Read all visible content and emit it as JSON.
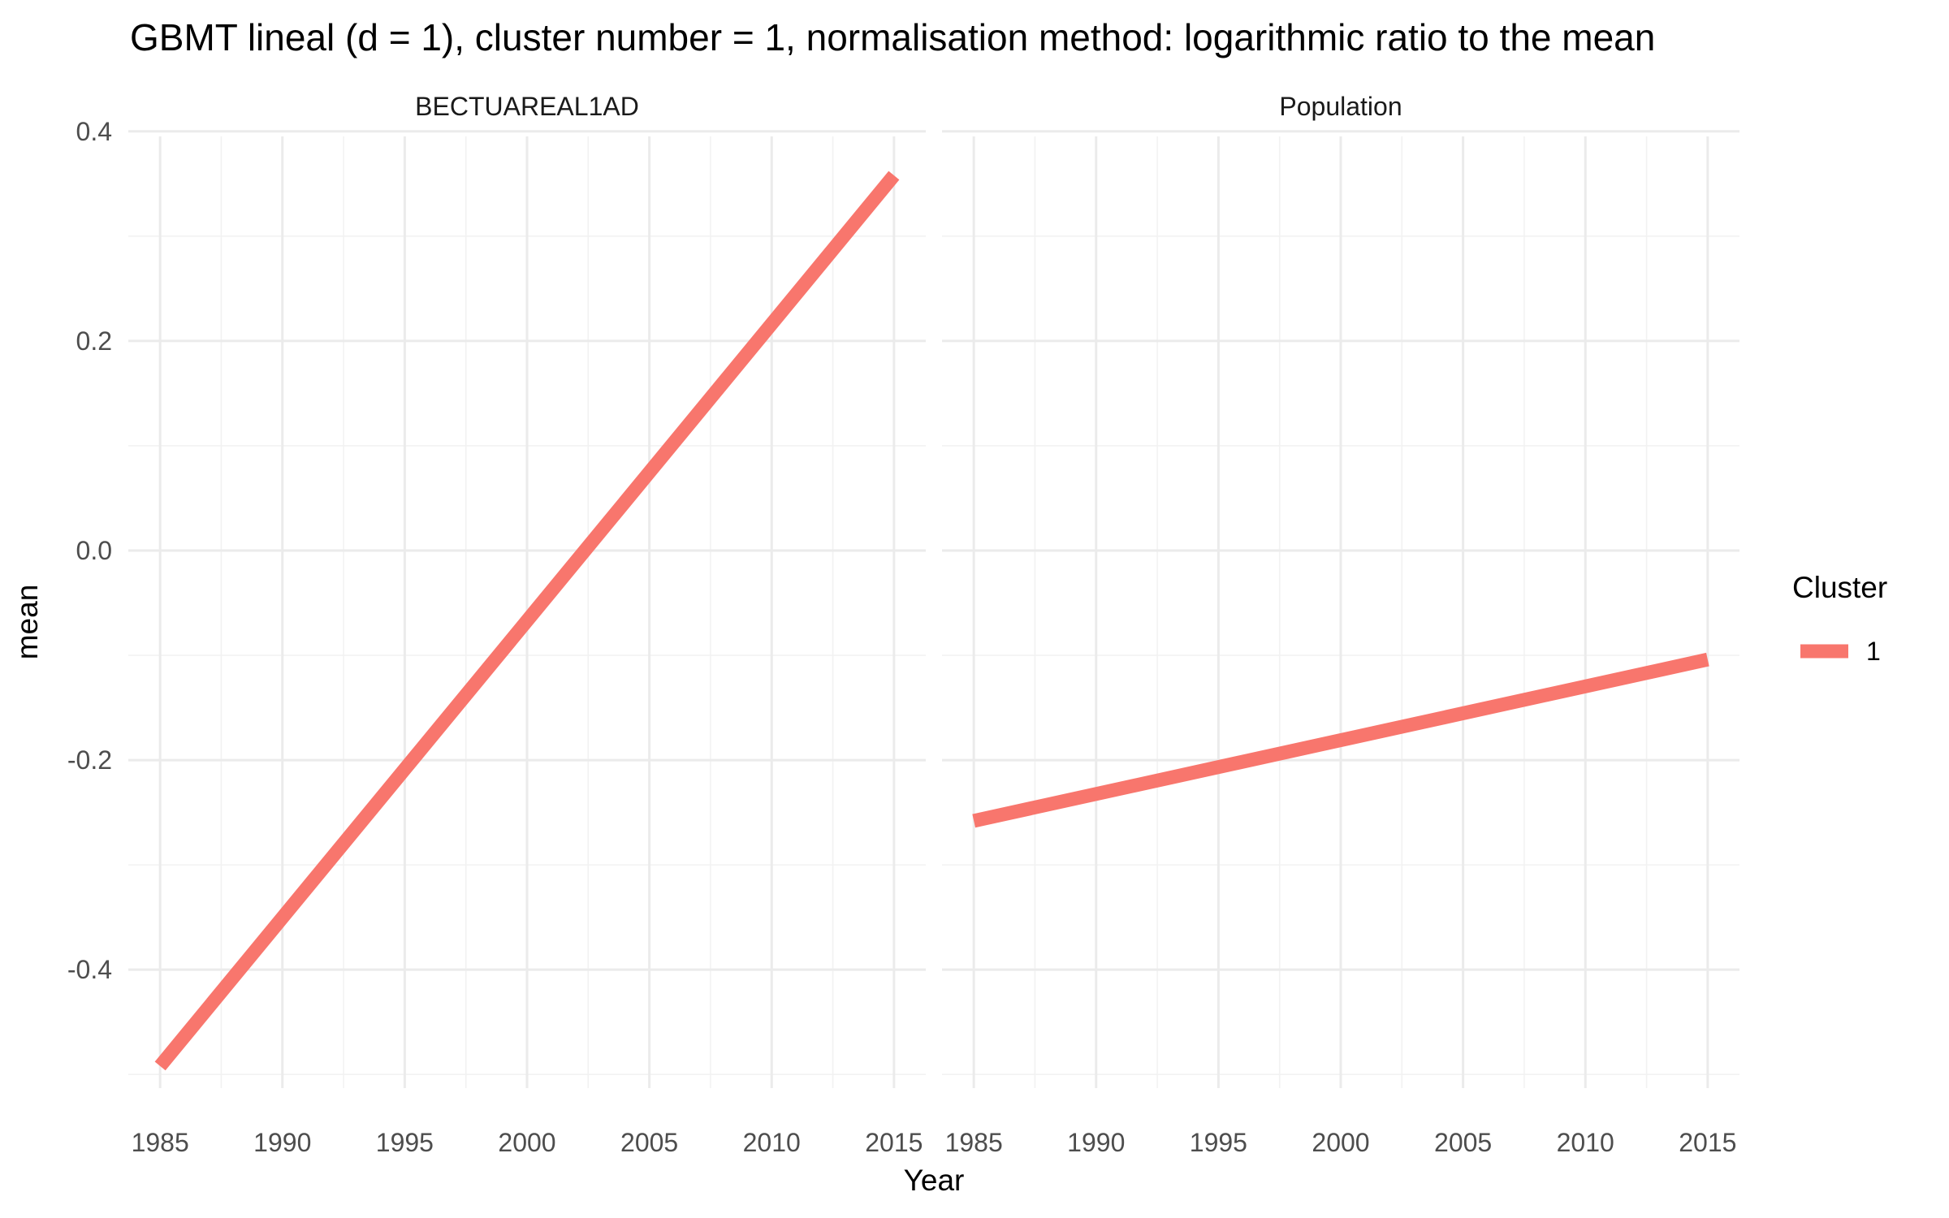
{
  "chart_data": {
    "type": "line",
    "title": "GBMT lineal (d = 1), cluster number = 1, normalisation method: logarithmic ratio to the mean",
    "xlabel": "Year",
    "ylabel": "mean",
    "xlim": [
      1983.7,
      2016.3
    ],
    "ylim": [
      -0.513,
      0.413
    ],
    "x_major_ticks": [
      1985,
      1990,
      1995,
      2000,
      2005,
      2010,
      2015
    ],
    "x_tick_labels": [
      "1985",
      "1990",
      "1995",
      "2000",
      "2005",
      "2010",
      "2015"
    ],
    "x_minor_ticks": [
      1987.5,
      1992.5,
      1997.5,
      2002.5,
      2007.5,
      2012.5
    ],
    "y_major_ticks": [
      -0.4,
      -0.2,
      0.0,
      0.2,
      0.4
    ],
    "y_tick_labels": [
      "-0.4",
      "-0.2",
      "0.0",
      "0.2",
      "0.4"
    ],
    "y_minor_ticks": [
      -0.5,
      -0.3,
      -0.1,
      0.1,
      0.3
    ],
    "grid": true,
    "legend": {
      "title": "Cluster",
      "placement": "right",
      "entries": [
        {
          "label": "1",
          "color": "#F8766D"
        }
      ]
    },
    "panels": [
      {
        "strip_label": "BECTUAREAL1AD",
        "series": [
          {
            "name": "1",
            "color": "#F8766D",
            "x": [
              1985,
              2015
            ],
            "y": [
              -0.492,
              0.358
            ]
          }
        ]
      },
      {
        "strip_label": "Population",
        "series": [
          {
            "name": "1",
            "color": "#F8766D",
            "x": [
              1985,
              2015
            ],
            "y": [
              -0.258,
              -0.104
            ]
          }
        ]
      }
    ]
  }
}
